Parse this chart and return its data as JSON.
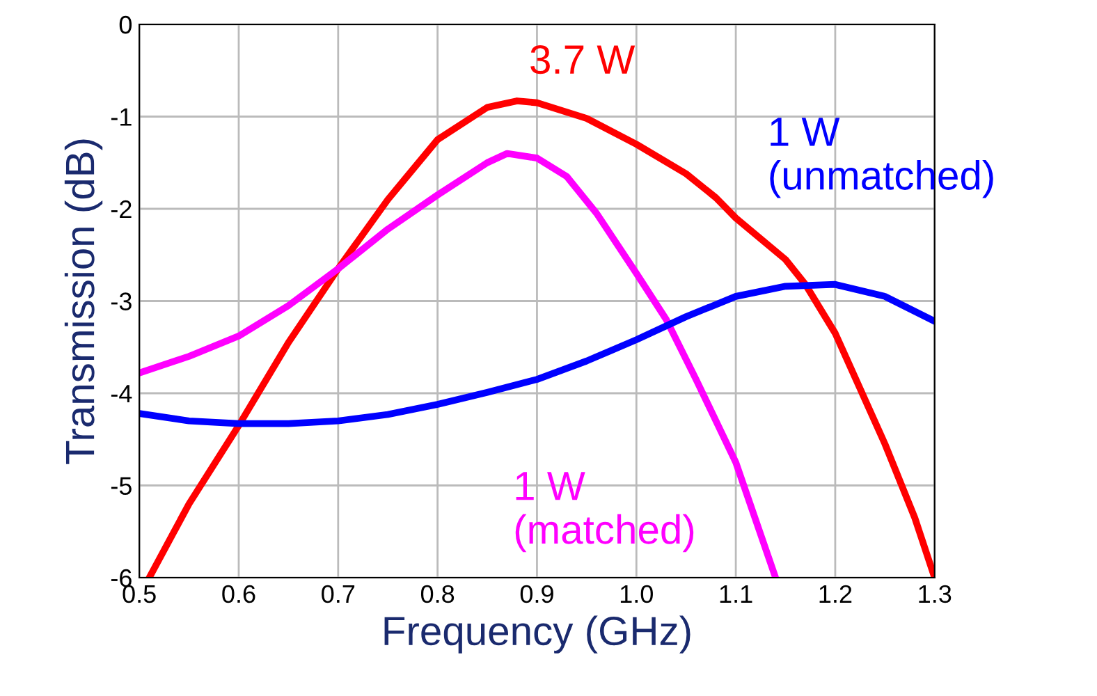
{
  "chart_data": {
    "type": "line",
    "xlabel": "Frequency (GHz)",
    "ylabel": "Transmission (dB)",
    "xlim": [
      0.5,
      1.3
    ],
    "xticks": [
      0.5,
      0.6,
      0.7,
      0.8,
      0.9,
      {
        "value": 1.0,
        "label": "1.0"
      },
      1.1,
      1.2,
      1.3
    ],
    "ylim": [
      -6,
      0
    ],
    "yticks": [
      0,
      -1,
      -2,
      -3,
      -4,
      -5,
      -6
    ],
    "grid": true,
    "legend": false,
    "marker": "none",
    "line_style": "solid",
    "series": [
      {
        "name": "3.7 W",
        "color": "#ff0000",
        "x": [
          0.51,
          0.55,
          0.6,
          0.65,
          0.7,
          0.75,
          0.8,
          0.85,
          0.88,
          0.9,
          0.95,
          1.0,
          1.05,
          1.08,
          1.1,
          1.15,
          1.17,
          1.2,
          1.25,
          1.28,
          1.3
        ],
        "values": [
          -6.0,
          -5.2,
          -4.35,
          -3.45,
          -2.65,
          -1.9,
          -1.25,
          -0.9,
          -0.83,
          -0.85,
          -1.02,
          -1.3,
          -1.62,
          -1.88,
          -2.1,
          -2.55,
          -2.82,
          -3.35,
          -4.55,
          -5.35,
          -6.0
        ]
      },
      {
        "name": "1 W\n(matched)",
        "color": "#ff00ff",
        "x": [
          0.5,
          0.55,
          0.6,
          0.65,
          0.7,
          0.75,
          0.8,
          0.85,
          0.87,
          0.9,
          0.93,
          0.96,
          1.0,
          1.03,
          1.06,
          1.1,
          1.14
        ],
        "values": [
          -3.78,
          -3.6,
          -3.38,
          -3.05,
          -2.65,
          -2.22,
          -1.85,
          -1.5,
          -1.4,
          -1.45,
          -1.65,
          -2.05,
          -2.7,
          -3.2,
          -3.85,
          -4.75,
          -6.0
        ]
      },
      {
        "name": "1 W\n(unmatched)",
        "color": "#0000ff",
        "x": [
          0.5,
          0.55,
          0.6,
          0.65,
          0.7,
          0.75,
          0.8,
          0.85,
          0.9,
          0.95,
          1.0,
          1.05,
          1.1,
          1.15,
          1.2,
          1.25,
          1.3
        ],
        "values": [
          -4.22,
          -4.3,
          -4.33,
          -4.33,
          -4.3,
          -4.23,
          -4.12,
          -3.99,
          -3.85,
          -3.65,
          -3.42,
          -3.17,
          -2.95,
          -2.84,
          -2.82,
          -2.95,
          -3.22
        ]
      }
    ]
  }
}
